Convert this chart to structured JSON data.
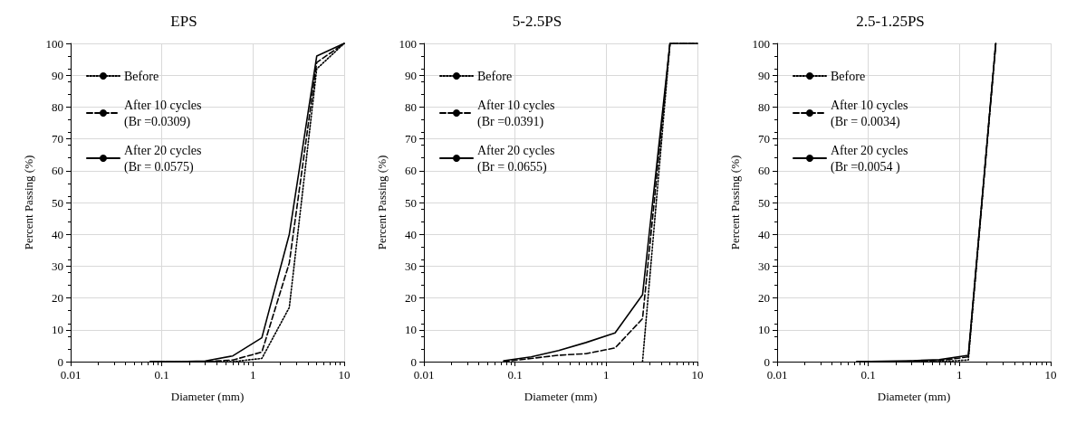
{
  "chart_data": [
    {
      "type": "line",
      "title": "EPS",
      "xlabel": "Diameter (mm)",
      "ylabel": "Percent Passing (%)",
      "log": "x",
      "xlim": [
        0.01,
        10
      ],
      "xticks": [
        0.01,
        0.1,
        1,
        10
      ],
      "ylim": [
        0,
        100
      ],
      "yticks": [
        0,
        10,
        20,
        30,
        40,
        50,
        60,
        70,
        80,
        90,
        100
      ],
      "grid": true,
      "legend": "top left",
      "marker": "none",
      "series": [
        {
          "name": "Before",
          "color": "#000000",
          "line_style": "dotted",
          "x": [
            0.075,
            0.15,
            0.3,
            0.6,
            1.25,
            2.5,
            5,
            10
          ],
          "values": [
            0,
            0,
            0,
            0,
            1,
            17,
            92,
            100
          ]
        },
        {
          "name": "After 10 cycles\n(Br =0.0309)",
          "color": "#000000",
          "line_style": "dashed",
          "x": [
            0.075,
            0.15,
            0.3,
            0.6,
            1.25,
            2.5,
            5,
            10
          ],
          "values": [
            0,
            0,
            0,
            0.5,
            3,
            31,
            94,
            100
          ]
        },
        {
          "name": "After 20 cycles\n(Br = 0.0575)",
          "color": "#000000",
          "line_style": "solid",
          "x": [
            0.075,
            0.15,
            0.3,
            0.6,
            1.25,
            2.5,
            5,
            10
          ],
          "values": [
            0,
            0,
            0.2,
            1.8,
            7.5,
            40,
            96,
            100
          ]
        }
      ]
    },
    {
      "type": "line",
      "title": "5-2.5PS",
      "xlabel": "Diameter (mm)",
      "ylabel": "Percent Passing (%)",
      "log": "x",
      "xlim": [
        0.01,
        10
      ],
      "xticks": [
        0.01,
        0.1,
        1,
        10
      ],
      "ylim": [
        0,
        100
      ],
      "yticks": [
        0,
        10,
        20,
        30,
        40,
        50,
        60,
        70,
        80,
        90,
        100
      ],
      "grid": true,
      "legend": "top left",
      "marker": "none",
      "series": [
        {
          "name": "Before",
          "color": "#000000",
          "line_style": "dotted",
          "x": [
            2.5,
            5,
            10
          ],
          "values": [
            0,
            100,
            100
          ]
        },
        {
          "name": "After 10 cycles\n(Br =0.0391)",
          "color": "#000000",
          "line_style": "dashed",
          "x": [
            0.075,
            0.15,
            0.3,
            0.6,
            1.25,
            2.5,
            5,
            10
          ],
          "values": [
            0,
            1,
            2,
            2.5,
            4.3,
            13.5,
            100,
            100
          ]
        },
        {
          "name": "After 20 cycles\n(Br = 0.0655)",
          "color": "#000000",
          "line_style": "solid",
          "x": [
            0.075,
            0.15,
            0.3,
            0.6,
            1.25,
            2.5,
            5,
            10
          ],
          "values": [
            0.3,
            1.5,
            3.5,
            6,
            9,
            21,
            100,
            100
          ]
        }
      ]
    },
    {
      "type": "line",
      "title": "2.5-1.25PS",
      "xlabel": "Diameter (mm)",
      "ylabel": "Percent Passing (%)",
      "log": "x",
      "xlim": [
        0.01,
        10
      ],
      "xticks": [
        0.01,
        0.1,
        1,
        10
      ],
      "ylim": [
        0,
        100
      ],
      "yticks": [
        0,
        10,
        20,
        30,
        40,
        50,
        60,
        70,
        80,
        90,
        100
      ],
      "grid": true,
      "legend": "top left",
      "marker": "none",
      "series": [
        {
          "name": "Before",
          "color": "#000000",
          "line_style": "dotted",
          "x": [
            0.075,
            0.15,
            0.3,
            0.6,
            1.25,
            2.5
          ],
          "values": [
            0,
            0,
            0,
            0,
            0.5,
            100
          ]
        },
        {
          "name": "After 10 cycles\n(Br = 0.0034)",
          "color": "#000000",
          "line_style": "dashed",
          "x": [
            0.075,
            0.15,
            0.3,
            0.6,
            1.25,
            2.5
          ],
          "values": [
            0,
            0,
            0.1,
            0.3,
            1.5,
            100
          ]
        },
        {
          "name": "After 20 cycles\n(Br =0.0054 )",
          "color": "#000000",
          "line_style": "solid",
          "x": [
            0.075,
            0.15,
            0.3,
            0.6,
            1.25,
            2.5
          ],
          "values": [
            0,
            0.1,
            0.3,
            0.6,
            2,
            100
          ]
        }
      ]
    }
  ]
}
